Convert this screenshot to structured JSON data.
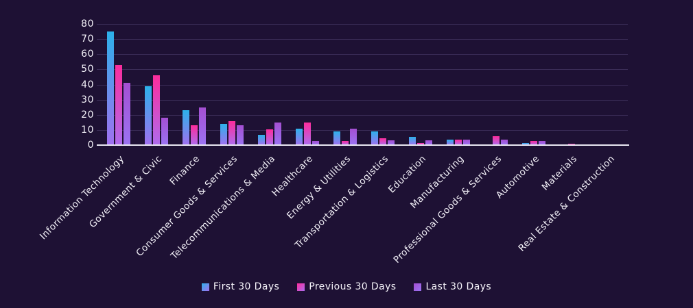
{
  "colors": {
    "background": "#1e1134",
    "gridline": "#3b2d58",
    "axis_line": "#eae8f3",
    "text": "#f2f0f7"
  },
  "chart_data": {
    "type": "bar",
    "title": "",
    "xlabel": "",
    "ylabel": "",
    "ylim": [
      0,
      80
    ],
    "yticks": [
      0,
      10,
      20,
      30,
      40,
      50,
      60,
      70,
      80
    ],
    "grid": true,
    "legend_position": "bottom",
    "categories": [
      "Information Technology",
      "Government & Civic",
      "Finance",
      "Consumer Goods & Services",
      "Telecommunications & Media",
      "Healthcare",
      "Energy & Utilities",
      "Transportation & Logistics",
      "Education",
      "Manufacturing",
      "Professional Goods & Services",
      "Automotive",
      "Materials",
      "Real Estate & Construction"
    ],
    "series": [
      {
        "name": "First 30 Days",
        "color_top": "#2cb1ea",
        "color_bottom": "#a170f0",
        "values": [
          75,
          39,
          23,
          14,
          7,
          11,
          9,
          9,
          5.5,
          3.5,
          0,
          1.5,
          0,
          0
        ]
      },
      {
        "name": "Previous 30 Days",
        "color_top": "#fc2c9c",
        "color_bottom": "#ae6cee",
        "values": [
          53,
          46,
          13,
          16,
          10.5,
          15,
          2.5,
          4.5,
          1.5,
          3.5,
          6,
          2.5,
          1,
          0
        ]
      },
      {
        "name": "Last 30 Days",
        "color_top": "#a44fd2",
        "color_bottom": "#9b73f2",
        "values": [
          41,
          18,
          25,
          13,
          15,
          2.5,
          11,
          3,
          3,
          3.5,
          3.5,
          2.5,
          0,
          0
        ]
      }
    ]
  }
}
